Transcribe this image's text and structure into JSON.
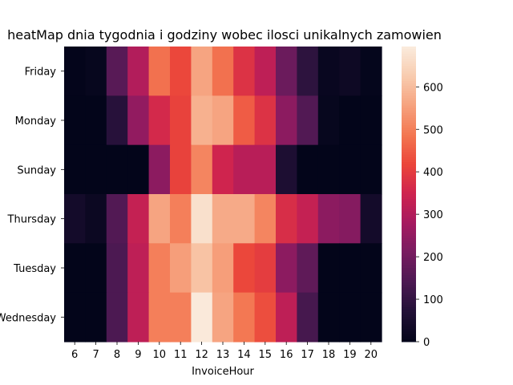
{
  "chart_data": {
    "type": "heatmap",
    "title": "heatMap dnia tygodnia i godziny wobec ilosci unikalnych zamowien",
    "xlabel": "InvoiceHour",
    "ylabel": "",
    "x_categories": [
      "6",
      "7",
      "8",
      "9",
      "10",
      "11",
      "12",
      "13",
      "14",
      "15",
      "16",
      "17",
      "18",
      "19",
      "20"
    ],
    "y_categories": [
      "Friday",
      "Monday",
      "Sunday",
      "Thursday",
      "Tuesday",
      "Wednesday"
    ],
    "values": [
      [
        3,
        10,
        160,
        300,
        480,
        420,
        560,
        480,
        380,
        320,
        190,
        90,
        15,
        25,
        5
      ],
      [
        0,
        0,
        80,
        250,
        360,
        410,
        580,
        560,
        450,
        380,
        240,
        150,
        10,
        0,
        0
      ],
      [
        0,
        0,
        0,
        0,
        240,
        410,
        510,
        350,
        310,
        310,
        60,
        0,
        0,
        0,
        0
      ],
      [
        40,
        20,
        150,
        330,
        560,
        500,
        670,
        570,
        570,
        510,
        370,
        330,
        240,
        230,
        40
      ],
      [
        0,
        0,
        140,
        320,
        500,
        550,
        610,
        550,
        420,
        400,
        240,
        170,
        0,
        0,
        0
      ],
      [
        0,
        0,
        140,
        320,
        500,
        500,
        690,
        560,
        490,
        430,
        320,
        130,
        0,
        0,
        0
      ]
    ],
    "colorbar": {
      "min": 0,
      "max": 695,
      "ticks": [
        0,
        100,
        200,
        300,
        400,
        500,
        600
      ]
    },
    "colormap": "rocket"
  }
}
